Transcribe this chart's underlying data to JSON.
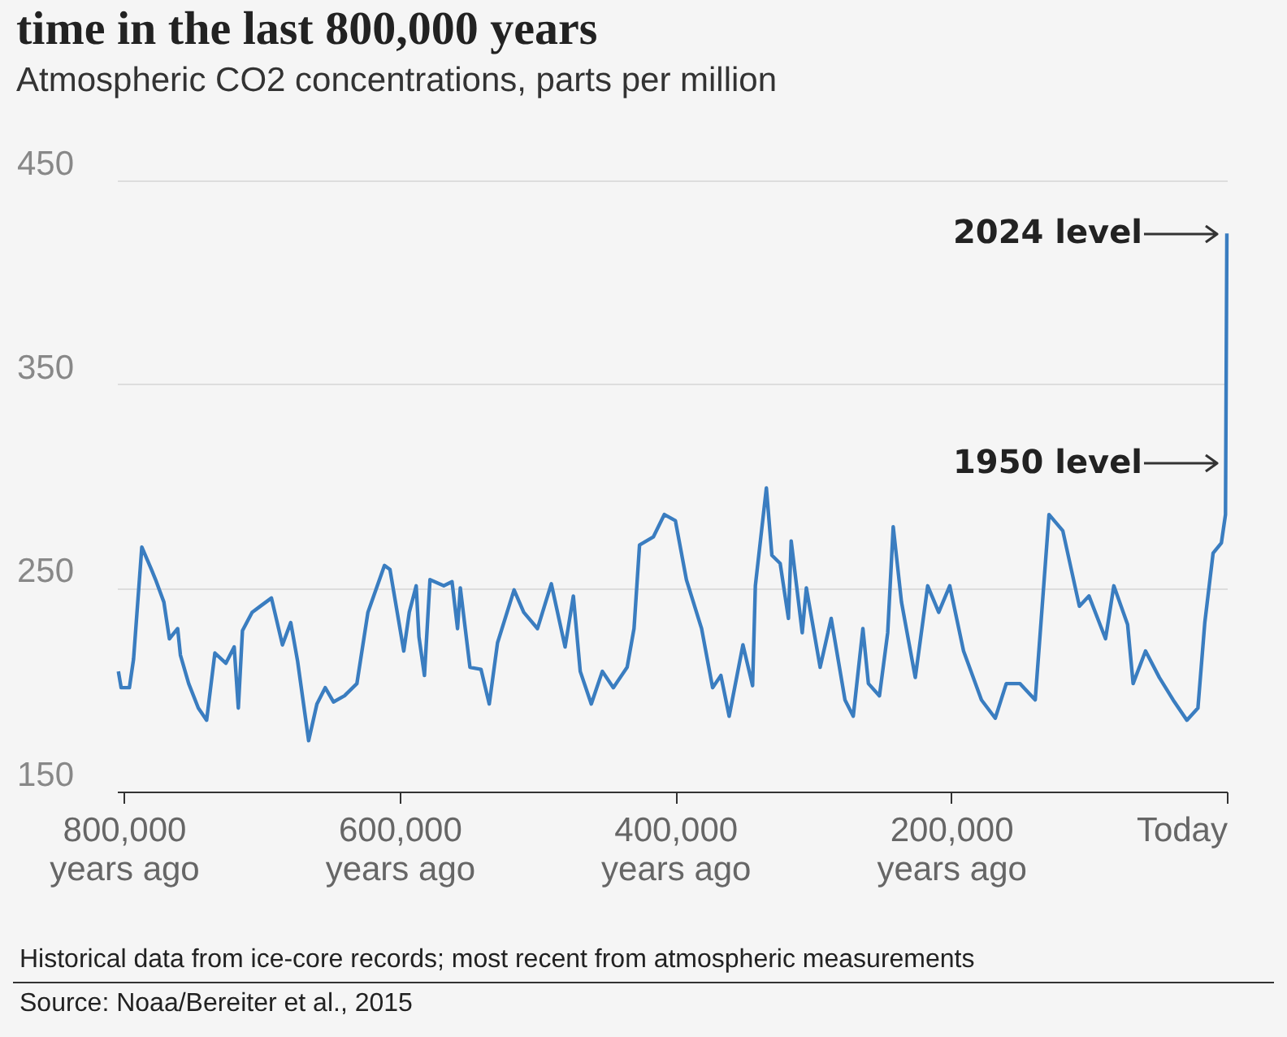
{
  "chart_data": {
    "type": "line",
    "title": "time in the last 800,000 years",
    "subtitle": "Atmospheric CO2 concentrations, parts per million",
    "x": [
      804000,
      802000,
      796000,
      793000,
      787000,
      780000,
      777000,
      771000,
      767000,
      761000,
      759000,
      753000,
      746000,
      740000,
      734000,
      726000,
      720000,
      717000,
      714000,
      707000,
      701000,
      693000,
      685000,
      679000,
      674000,
      666000,
      660000,
      654000,
      648000,
      640000,
      631000,
      623000,
      611000,
      607000,
      597000,
      593000,
      588000,
      586000,
      582000,
      578000,
      568000,
      562000,
      558000,
      556000,
      549000,
      541000,
      535000,
      529000,
      517000,
      510000,
      500000,
      490000,
      480000,
      474000,
      469000,
      461000,
      453000,
      445000,
      435000,
      430000,
      426000,
      416000,
      408000,
      400000,
      392000,
      381000,
      373000,
      367000,
      361000,
      351000,
      344000,
      342000,
      334000,
      330000,
      324000,
      318000,
      316000,
      308000,
      305000,
      295000,
      287000,
      277000,
      271000,
      264000,
      260000,
      252000,
      246000,
      242000,
      236000,
      226000,
      217000,
      209000,
      201000,
      191000,
      178000,
      168000,
      160000,
      150000,
      139000,
      129000,
      119000,
      107000,
      100000,
      88000,
      82000,
      72000,
      68000,
      59000,
      49000,
      39000,
      29000,
      21000,
      16000,
      10000,
      4000,
      1000,
      0
    ],
    "series": [
      {
        "color": "#3a7dc0",
        "values": [
          209,
          201,
          201,
          215,
          270,
          259,
          254,
          243,
          225,
          230,
          217,
          203,
          191,
          185,
          218,
          213,
          221,
          191,
          229,
          238,
          241,
          245,
          222,
          233,
          214,
          175,
          193,
          201,
          194,
          197,
          203,
          238,
          261,
          259,
          219,
          238,
          251,
          226,
          207,
          254,
          251,
          253,
          230,
          250,
          211,
          210,
          193,
          223,
          249,
          238,
          230,
          252,
          221,
          246,
          209,
          193,
          209,
          201,
          211,
          230,
          271,
          275,
          286,
          283,
          254,
          230,
          201,
          207,
          187,
          222,
          202,
          251,
          299,
          266,
          262,
          235,
          273,
          228,
          250,
          211,
          235,
          195,
          187,
          230,
          203,
          197,
          228,
          280,
          243,
          206,
          251,
          238,
          251,
          219,
          195,
          186,
          203,
          203,
          195,
          286,
          278,
          241,
          246,
          225,
          251,
          232,
          203,
          219,
          206,
          195,
          185,
          191,
          233,
          267,
          272,
          286,
          424
        ]
      }
    ],
    "xlim": [
      805000,
      0
    ],
    "xticks": [
      {
        "value": 800000,
        "label": "800,000 years ago"
      },
      {
        "value": 600000,
        "label": "600,000 years ago"
      },
      {
        "value": 400000,
        "label": "400,000 years ago"
      },
      {
        "value": 200000,
        "label": "200,000 years ago"
      },
      {
        "value": 0,
        "label": "Today"
      }
    ],
    "ylim": [
      150,
      450
    ],
    "yticks": [
      150,
      250,
      350,
      450
    ],
    "grid": "y",
    "annotations": [
      {
        "text": "2024 level",
        "x": 0,
        "y": 424
      },
      {
        "text": "1950 level",
        "x": 0,
        "y": 311
      },
      "Historical data from ice-core records; most recent from atmospheric measurements",
      "Source: Noaa/Bereiter et al., 2015"
    ]
  }
}
